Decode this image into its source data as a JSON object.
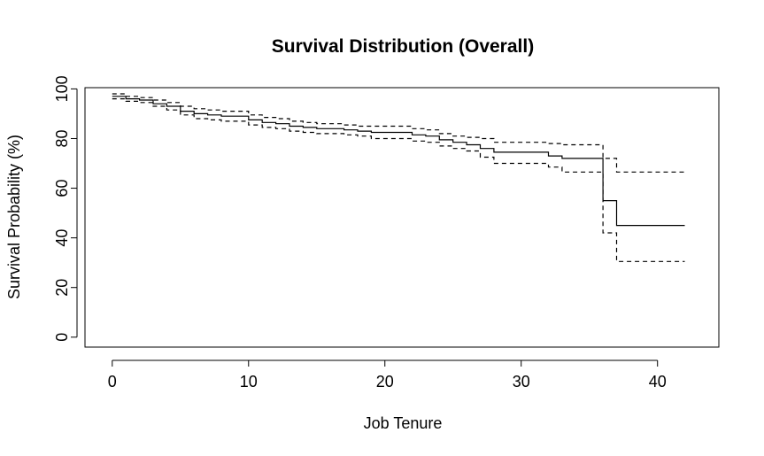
{
  "chart_data": {
    "type": "line",
    "title": "Survival Distribution (Overall)",
    "xlabel": "Job Tenure",
    "ylabel": "Survival Probability (%)",
    "xlim": [
      -2,
      44.5
    ],
    "ylim": [
      -4,
      100.5
    ],
    "xticks": [
      0,
      10,
      20,
      30,
      40
    ],
    "yticks": [
      0,
      20,
      40,
      60,
      80,
      100
    ],
    "grid": false,
    "legend": "none",
    "colors": {
      "line": "#000000",
      "axis": "#000000",
      "background": "#ffffff"
    },
    "series": [
      {
        "role": "estimate",
        "line_style": "solid",
        "x": [
          0,
          1,
          2,
          3,
          4,
          5,
          6,
          7,
          8,
          10,
          11,
          12,
          13,
          14,
          15,
          17,
          18,
          19,
          22,
          23,
          24,
          25,
          26,
          27,
          28,
          31,
          32,
          33,
          35,
          36,
          37,
          42
        ],
        "y": [
          97,
          96,
          95.5,
          94,
          93,
          91,
          90,
          89.5,
          89,
          87.5,
          86.5,
          86,
          85,
          84.5,
          84,
          83.5,
          83,
          82.5,
          81.5,
          81,
          79.5,
          78.5,
          77.5,
          76,
          74.5,
          74.5,
          73,
          72,
          72,
          55,
          45,
          45
        ]
      },
      {
        "role": "upper-ci",
        "line_style": "dashed",
        "x": [
          0,
          1,
          2,
          3,
          4,
          5,
          6,
          7,
          8,
          10,
          11,
          12,
          13,
          14,
          15,
          17,
          18,
          19,
          22,
          23,
          24,
          25,
          26,
          27,
          28,
          31,
          32,
          33,
          35,
          36,
          37,
          42
        ],
        "y": [
          98,
          97,
          96.5,
          95.5,
          94.5,
          93,
          92,
          91.5,
          91,
          89.5,
          88.5,
          88,
          87,
          86.5,
          86,
          85.5,
          85,
          85,
          84,
          83.5,
          82,
          81,
          80.5,
          80,
          78.5,
          78.5,
          78,
          77.5,
          77.5,
          72,
          66.5,
          66.5
        ]
      },
      {
        "role": "lower-ci",
        "line_style": "dashed",
        "x": [
          0,
          1,
          2,
          3,
          4,
          5,
          6,
          7,
          8,
          10,
          11,
          12,
          13,
          14,
          15,
          17,
          18,
          19,
          22,
          23,
          24,
          25,
          26,
          27,
          28,
          31,
          32,
          33,
          35,
          36,
          37,
          42
        ],
        "y": [
          96,
          95,
          94.5,
          93,
          91.5,
          89.5,
          88,
          87.5,
          87,
          85.5,
          84.5,
          84,
          83,
          82.5,
          82,
          81.5,
          81,
          80,
          79,
          78.5,
          77,
          76,
          75,
          72.5,
          70,
          70,
          68.5,
          66.5,
          66.5,
          42,
          30.5,
          30.5
        ]
      }
    ]
  }
}
